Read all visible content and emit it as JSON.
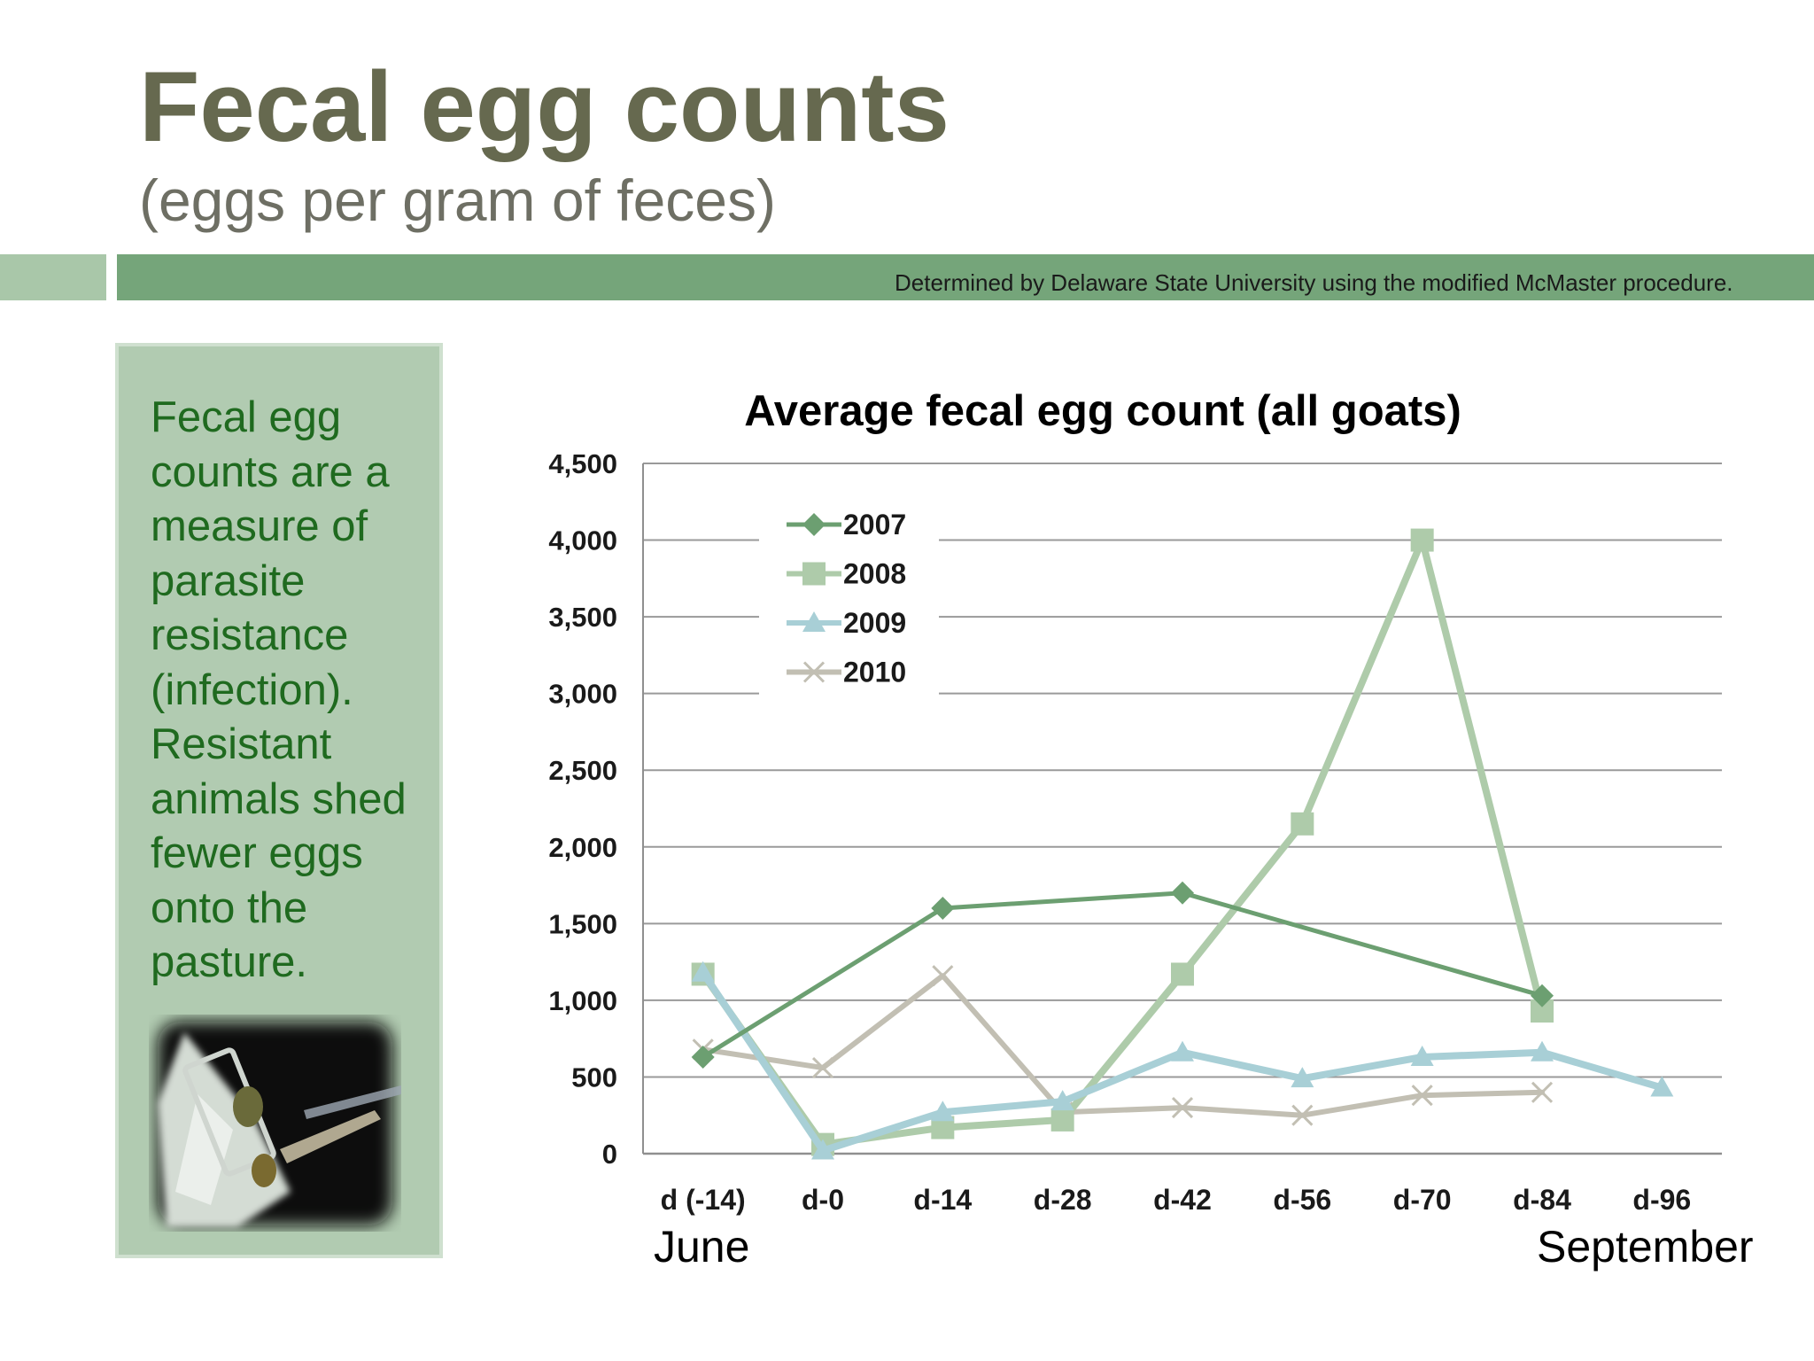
{
  "slide": {
    "title": "Fecal egg counts",
    "subtitle": "(eggs per gram of feces)",
    "source_note": "Determined by Delaware State University using the modified McMaster procedure.",
    "side_text": "Fecal egg counts are a measure of parasite resistance (infection). Resistant animals shed fewer eggs onto the pasture.",
    "month_start": "June",
    "month_end": "September",
    "colors": {
      "band": "#75a57a",
      "band_light": "#a9c7a9",
      "panel": "#b1cbb1",
      "side_text": "#1f6a1f",
      "title": "#66694f"
    }
  },
  "chart_data": {
    "type": "line",
    "title": "Average fecal egg count (all goats)",
    "xlabel": "",
    "ylabel": "",
    "categories": [
      "d (-14)",
      "d-0",
      "d-14",
      "d-28",
      "d-42",
      "d-56",
      "d-70",
      "d-84",
      "d-96"
    ],
    "ylim": [
      0,
      4500
    ],
    "yticks": [
      0,
      500,
      1000,
      1500,
      2000,
      2500,
      3000,
      3500,
      4000,
      4500
    ],
    "ytick_labels": [
      "0",
      "500",
      "1,000",
      "1,500",
      "2,000",
      "2,500",
      "3,000",
      "3,500",
      "4,000",
      "4,500"
    ],
    "grid": "horizontal",
    "legend_position": "top-left",
    "series": [
      {
        "name": "2007",
        "color": "#6c9f71",
        "marker": "diamond",
        "width": 5,
        "values": [
          630,
          null,
          1600,
          null,
          1700,
          null,
          null,
          1030,
          null
        ]
      },
      {
        "name": "2008",
        "color": "#aecbaa",
        "marker": "square",
        "width": 8,
        "values": [
          1170,
          60,
          170,
          220,
          1170,
          2150,
          4000,
          930,
          null
        ]
      },
      {
        "name": "2009",
        "color": "#a8cfd6",
        "marker": "triangle",
        "width": 8,
        "values": [
          1180,
          20,
          270,
          340,
          660,
          490,
          630,
          660,
          430
        ]
      },
      {
        "name": "2010",
        "color": "#c2bfb3",
        "marker": "cross",
        "width": 6,
        "values": [
          680,
          560,
          1160,
          270,
          300,
          250,
          380,
          400,
          null
        ]
      }
    ]
  }
}
